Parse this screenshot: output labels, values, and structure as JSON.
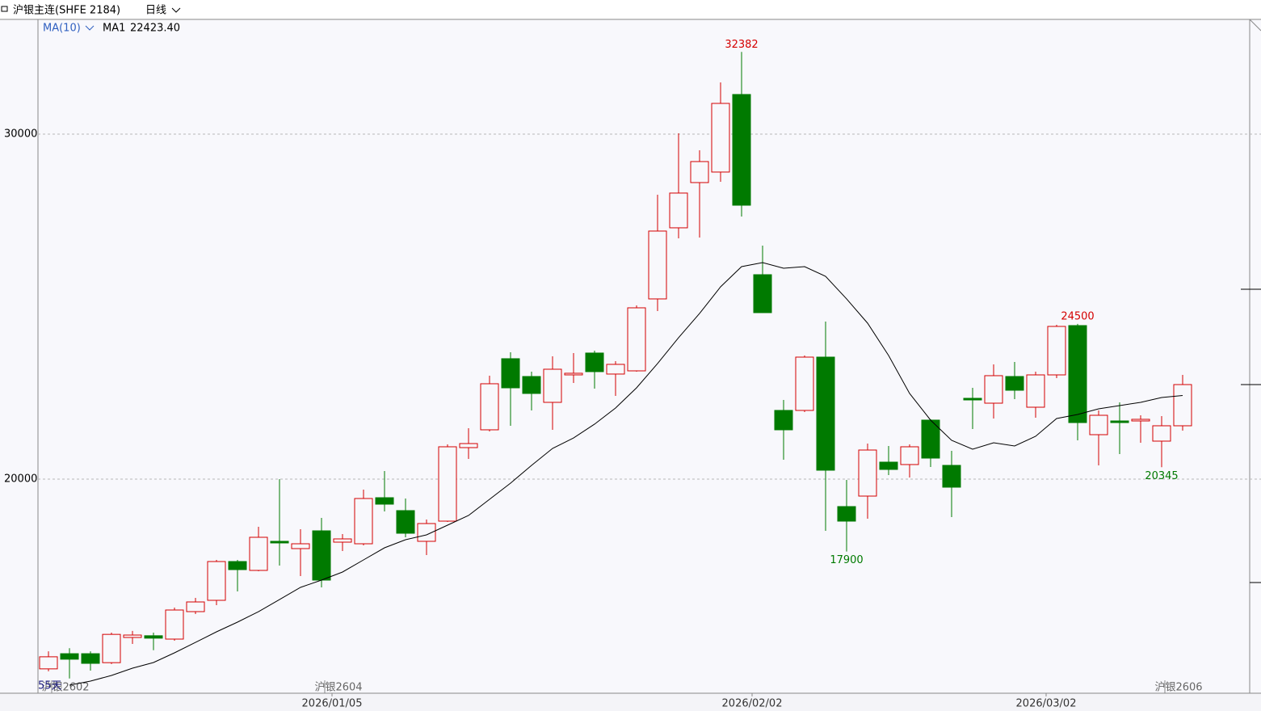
{
  "chart_data": {
    "type": "candlestick",
    "title": "沪银主连(SHFE 2184)",
    "period": "日线",
    "bar_count_label": "55天",
    "up_color": "#d40000",
    "down_color": "#007a00",
    "ylim": [
      13794,
      33325
    ],
    "yticks": [
      20000,
      30000
    ],
    "grid": true,
    "open": [
      14500,
      14940,
      14940,
      14680,
      15410,
      15460,
      15363,
      16159,
      16487,
      17611,
      17354,
      18197,
      17986,
      18501,
      18173,
      18126,
      19461,
      19087,
      18197,
      18782,
      20913,
      21429,
      23490,
      22974,
      22225,
      23021,
      23654,
      23045,
      23138,
      25223,
      27284,
      28595,
      28900,
      31148,
      25925,
      21991,
      21991,
      23536,
      19204,
      19508,
      20492,
      20422,
      21710,
      20398,
      22342,
      22201,
      22974,
      22084,
      23021,
      24450,
      21288,
      21686,
      21686,
      21101,
      21546
    ],
    "high": [
      15010,
      15100,
      15010,
      15550,
      15600,
      15550,
      16276,
      16557,
      17658,
      17658,
      18618,
      20000,
      18548,
      18876,
      18407,
      19696,
      20234,
      19438,
      18829,
      21007,
      21475,
      22998,
      23677,
      23115,
      23560,
      23654,
      23724,
      23419,
      25035,
      28244,
      30024,
      29532,
      31499,
      32382,
      26768,
      22295,
      23583,
      24567,
      19977,
      21030,
      20960,
      21007,
      21733,
      20820,
      22646,
      23326,
      23396,
      23115,
      24473,
      24500,
      21991,
      22225,
      21850,
      21827,
      23021
    ],
    "low": [
      14430,
      14220,
      14450,
      14640,
      15222,
      15040,
      15316,
      16089,
      16347,
      16745,
      17330,
      17494,
      17190,
      16862,
      17916,
      18080,
      19063,
      18314,
      17798,
      18759,
      20586,
      21382,
      21546,
      21991,
      21429,
      22787,
      22623,
      22412,
      23115,
      24871,
      26979,
      27003,
      28618,
      27612,
      24820,
      20562,
      21944,
      18501,
      17900,
      18852,
      20117,
      20047,
      20351,
      18899,
      21452,
      21757,
      22319,
      21780,
      22928,
      21124,
      20398,
      20726,
      21054,
      20345,
      21405
    ],
    "close": [
      14850,
      14780,
      14660,
      15500,
      15480,
      15390,
      16206,
      16440,
      17611,
      17377,
      18314,
      18150,
      18126,
      17073,
      18267,
      19438,
      19274,
      18431,
      18712,
      20937,
      21030,
      22764,
      22646,
      22483,
      23185,
      23068,
      23115,
      23326,
      24965,
      27190,
      28291,
      29204,
      30890,
      27939,
      24825,
      21429,
      23536,
      20258,
      18782,
      20843,
      20281,
      20937,
      20609,
      19766,
      22295,
      22998,
      22576,
      23021,
      24426,
      21639,
      21850,
      21639,
      21733,
      21546,
      22740
    ],
    "ma": {
      "indicator": "MA(10)",
      "name": "MA1",
      "color": "#000000",
      "last_label": "22423.40",
      "values": [
        null,
        14028,
        14145,
        14309,
        14520,
        14684,
        14965,
        15269,
        15574,
        15855,
        16159,
        16510,
        16862,
        17073,
        17307,
        17658,
        18009,
        18244,
        18384,
        18665,
        18946,
        19415,
        19883,
        20398,
        20890,
        21194,
        21593,
        22061,
        22646,
        23349,
        24099,
        24801,
        25574,
        26159,
        26276,
        26113,
        26159,
        25878,
        25223,
        24520,
        23583,
        22483,
        21710,
        21124,
        20867,
        21054,
        20960,
        21241,
        21757,
        21874,
        22037,
        22131,
        22225,
        22365,
        22423.4
      ]
    },
    "xticks": [
      {
        "value": 14,
        "label": "2026/01/05"
      },
      {
        "value": 34,
        "label": "2026/02/02"
      },
      {
        "value": 48,
        "label": "2026/03/02"
      }
    ],
    "contracts": [
      {
        "value": 1,
        "label": "沪银2602"
      },
      {
        "value": 14,
        "label": "沪银2604"
      },
      {
        "value": 54,
        "label": "沪银2606"
      }
    ]
  }
}
